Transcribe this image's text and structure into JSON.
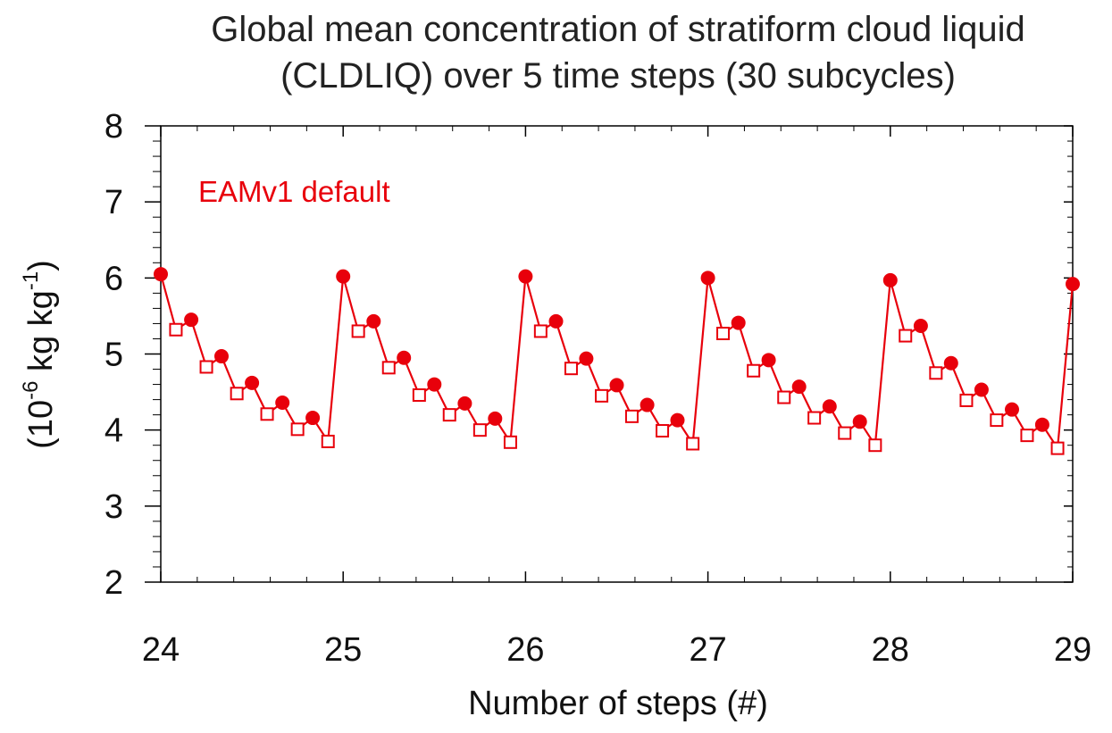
{
  "chart_data": {
    "type": "line",
    "title_line1": "Global mean concentration of stratiform cloud liquid",
    "title_line2": "(CLDLIQ) over 5 time steps (30 subcycles)",
    "xlabel": "Number of steps (#)",
    "ylabel_prefix": "(10",
    "ylabel_exp1": "-6",
    "ylabel_mid": " kg kg",
    "ylabel_exp2": "-1",
    "ylabel_suffix": ")",
    "annotation": "EAMv1 default",
    "xlim": [
      24,
      29
    ],
    "ylim": [
      2,
      8
    ],
    "xticks": [
      "24",
      "25",
      "26",
      "27",
      "28",
      "29"
    ],
    "yticks": [
      "2",
      "3",
      "4",
      "5",
      "6",
      "7",
      "8"
    ],
    "grid": false,
    "series": [
      {
        "color": "#e8000b",
        "markers": "filled-circle at even substeps, open-square at odd substeps",
        "x": [
          24.0,
          24.083,
          24.167,
          24.25,
          24.333,
          24.417,
          24.5,
          24.583,
          24.667,
          24.75,
          24.833,
          24.917,
          25.0,
          25.083,
          25.167,
          25.25,
          25.333,
          25.417,
          25.5,
          25.583,
          25.667,
          25.75,
          25.833,
          25.917,
          26.0,
          26.083,
          26.167,
          26.25,
          26.333,
          26.417,
          26.5,
          26.583,
          26.667,
          26.75,
          26.833,
          26.917,
          27.0,
          27.083,
          27.167,
          27.25,
          27.333,
          27.417,
          27.5,
          27.583,
          27.667,
          27.75,
          27.833,
          27.917,
          28.0,
          28.083,
          28.167,
          28.25,
          28.333,
          28.417,
          28.5,
          28.583,
          28.667,
          28.75,
          28.833,
          28.917,
          29.0
        ],
        "y": [
          6.05,
          5.32,
          5.45,
          4.83,
          4.97,
          4.48,
          4.62,
          4.21,
          4.36,
          4.01,
          4.16,
          3.85,
          6.02,
          5.3,
          5.43,
          4.82,
          4.95,
          4.46,
          4.6,
          4.2,
          4.35,
          4.0,
          4.15,
          3.84,
          6.02,
          5.3,
          5.43,
          4.81,
          4.94,
          4.45,
          4.59,
          4.18,
          4.33,
          3.99,
          4.13,
          3.82,
          6.0,
          5.27,
          5.41,
          4.78,
          4.92,
          4.43,
          4.57,
          4.16,
          4.31,
          3.96,
          4.11,
          3.8,
          5.97,
          5.24,
          5.37,
          4.75,
          4.88,
          4.39,
          4.53,
          4.13,
          4.27,
          3.93,
          4.07,
          3.76,
          5.92
        ]
      }
    ]
  }
}
